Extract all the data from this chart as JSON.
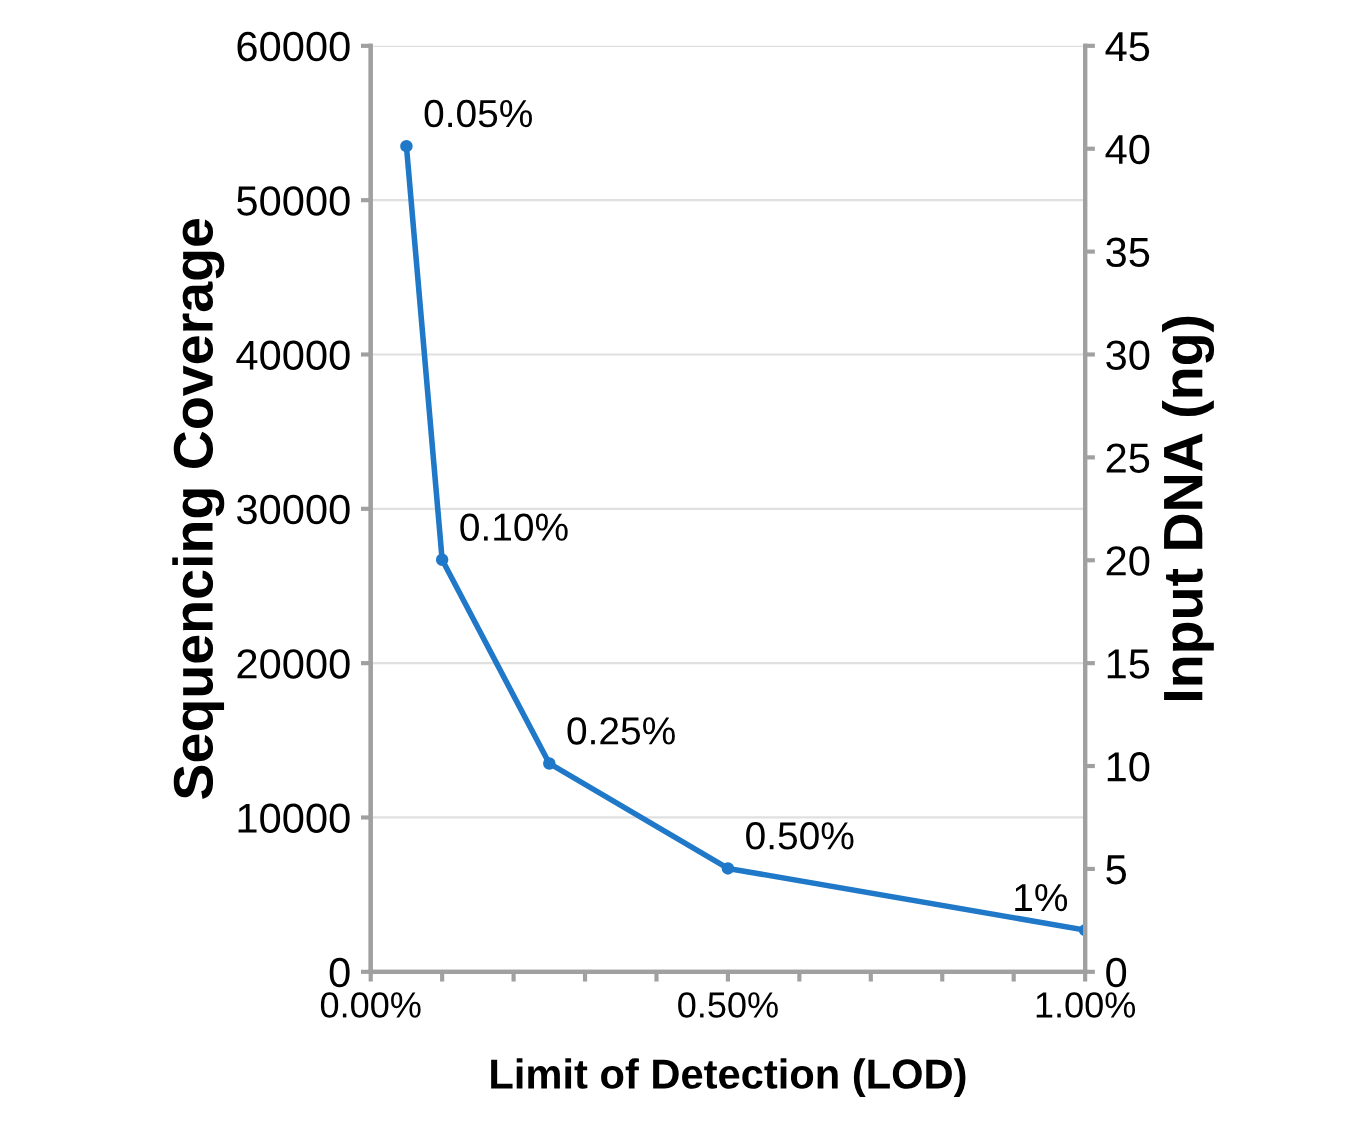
{
  "chart_data": {
    "type": "line",
    "xlabel": "Limit of Detection (LOD)",
    "ylabel": "Sequencing Coverage",
    "y2label": "Input DNA (ng)",
    "x": [
      0.05,
      0.1,
      0.25,
      0.5,
      1.0
    ],
    "series": [
      {
        "color": "#1f78c8",
        "values": [
          53500,
          26700,
          13500,
          6700,
          2700
        ]
      }
    ],
    "xlim": [
      0,
      1.0
    ],
    "xticks": [
      {
        "value": 0,
        "label": "0.00%"
      },
      {
        "value": 0.1,
        "label": null
      },
      {
        "value": 0.2,
        "label": null
      },
      {
        "value": 0.3,
        "label": null
      },
      {
        "value": 0.4,
        "label": null
      },
      {
        "value": 0.5,
        "label": "0.50%"
      },
      {
        "value": 0.6,
        "label": null
      },
      {
        "value": 0.7,
        "label": null
      },
      {
        "value": 0.8,
        "label": null
      },
      {
        "value": 0.9,
        "label": null
      },
      {
        "value": 1.0,
        "label": "1.00%"
      }
    ],
    "ylim": [
      0,
      60000
    ],
    "yticks": [
      0,
      10000,
      20000,
      30000,
      40000,
      50000,
      60000
    ],
    "y2lim": [
      0,
      45
    ],
    "y2ticks": [
      0,
      5,
      10,
      15,
      20,
      25,
      30,
      35,
      40,
      45
    ],
    "grid": "y",
    "marker": "circle",
    "line_style": "solid",
    "legend": false,
    "annotations": [
      {
        "text": "0.05%",
        "x": 0.05,
        "y": 53500
      },
      {
        "text": "0.10%",
        "x": 0.1,
        "y": 26700
      },
      {
        "text": "0.25%",
        "x": 0.25,
        "y": 13500
      },
      {
        "text": "0.50%",
        "x": 0.5,
        "y": 6700
      },
      {
        "text": "1%",
        "x": 1.0,
        "y": 2700
      }
    ]
  }
}
